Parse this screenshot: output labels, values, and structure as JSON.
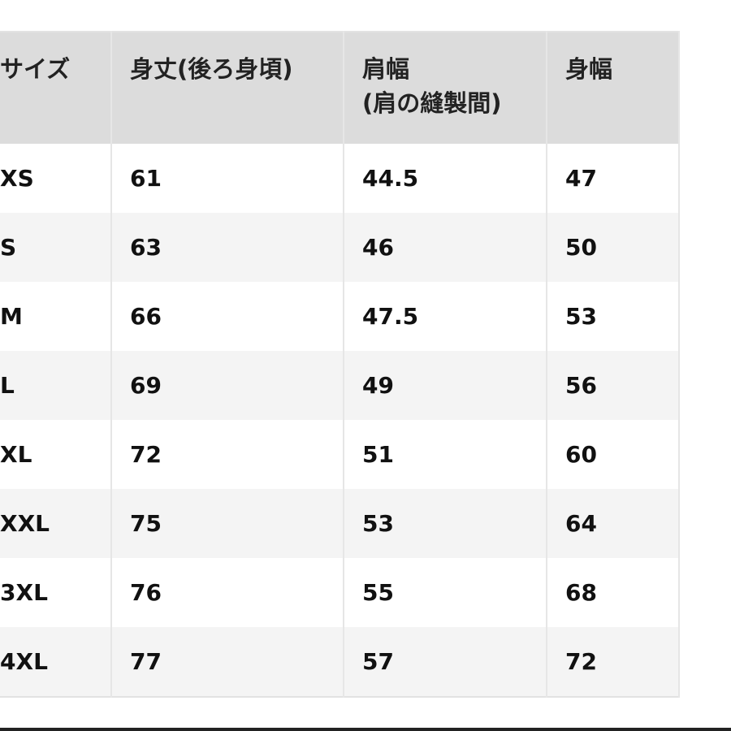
{
  "table": {
    "headers": [
      "サイズ",
      "身丈(後ろ身頃)",
      "肩幅",
      "身幅"
    ],
    "header_sub": {
      "shoulder": "(肩の縫製間)"
    },
    "rows": [
      [
        "XS",
        "61",
        "44.5",
        "47"
      ],
      [
        "S",
        "63",
        "46",
        "50"
      ],
      [
        "M",
        "66",
        "47.5",
        "53"
      ],
      [
        "L",
        "69",
        "49",
        "56"
      ],
      [
        "XL",
        "72",
        "51",
        "60"
      ],
      [
        "XXL",
        "75",
        "53",
        "64"
      ],
      [
        "3XL",
        "76",
        "55",
        "68"
      ],
      [
        "4XL",
        "77",
        "57",
        "72"
      ]
    ]
  },
  "colors": {
    "header_bg": "#dcdcdc",
    "alt_row_bg": "#f4f4f4",
    "text": "#111111"
  }
}
